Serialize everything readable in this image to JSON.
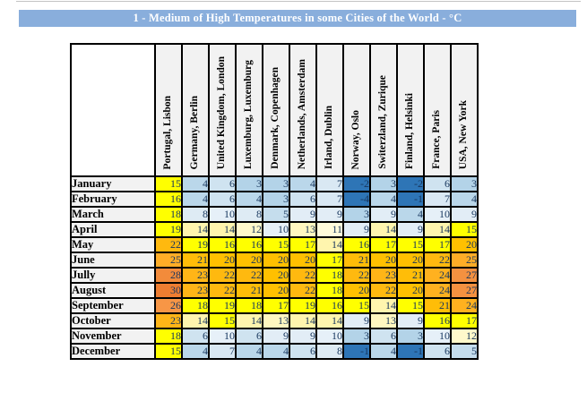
{
  "title_bar": {
    "label": "1 - Medium of High Temperatures in some Cities of the World - °C",
    "bg": "#89AEDC",
    "text_color": "#FFFFFF"
  },
  "colors": {
    "grid_border": "#000000",
    "header_cell_bg": "#F2F2F2",
    "month_cell_bg": "#F2F2F2",
    "number_text": "#17365D"
  },
  "chart_data": {
    "type": "heatmap",
    "title": "1 - Medium of High Temperatures in some Cities of the World - °C",
    "unit": "°C",
    "columns": [
      "Portugal, Lisbon",
      "Germany, Berlin",
      "United Kingdom, London",
      "Luxemburg, Luxemburg",
      "Denmark, Copenhagen",
      "Netherlands, Amsterdam",
      "Irland, Dublin",
      "Norway, Oslo",
      "Switerzland, Zurique",
      "Finland, Helsinki",
      "France, Paris",
      "USA, New York"
    ],
    "rows": [
      "January",
      "February",
      "March",
      "April",
      "May",
      "June",
      "Jully",
      "August",
      "September",
      "October",
      "November",
      "December"
    ],
    "values": [
      [
        15,
        4,
        6,
        3,
        3,
        4,
        7,
        -2,
        3,
        -2,
        6,
        3
      ],
      [
        16,
        4,
        6,
        4,
        3,
        6,
        7,
        -4,
        4,
        -1,
        7,
        4
      ],
      [
        18,
        8,
        10,
        8,
        5,
        9,
        9,
        3,
        9,
        4,
        10,
        9
      ],
      [
        19,
        14,
        14,
        12,
        10,
        13,
        11,
        9,
        14,
        9,
        14,
        15
      ],
      [
        22,
        19,
        16,
        16,
        15,
        17,
        14,
        16,
        17,
        15,
        17,
        20
      ],
      [
        25,
        21,
        20,
        20,
        20,
        20,
        17,
        21,
        20,
        20,
        22,
        25
      ],
      [
        28,
        23,
        22,
        22,
        20,
        22,
        18,
        22,
        23,
        21,
        24,
        27
      ],
      [
        30,
        23,
        22,
        21,
        20,
        22,
        18,
        20,
        22,
        20,
        24,
        27
      ],
      [
        26,
        18,
        19,
        18,
        17,
        19,
        16,
        15,
        14,
        15,
        21,
        24
      ],
      [
        23,
        14,
        15,
        14,
        13,
        14,
        14,
        9,
        13,
        9,
        16,
        17
      ],
      [
        18,
        6,
        10,
        6,
        9,
        9,
        10,
        3,
        6,
        3,
        10,
        12
      ],
      [
        15,
        4,
        7,
        4,
        4,
        6,
        8,
        -1,
        4,
        -1,
        6,
        5
      ]
    ],
    "palette": {
      "-4": "#2E75B6",
      "-2": "#2E75B6",
      "-1": "#2E75B6",
      "3": "#B3D3E8",
      "4": "#BAD7EA",
      "5": "#C5DDED",
      "6": "#CFE3F0",
      "7": "#D9E8F3",
      "8": "#DEEBF4",
      "9": "#E2EDF6",
      "10": "#E6F0F8",
      "11": "#FFFBDB",
      "12": "#FFF9CB",
      "13": "#FFF7C0",
      "14": "#FFF5AE",
      "15": "#FFFF00",
      "16": "#FFFF00",
      "17": "#FFFF00",
      "18": "#FFFF00",
      "19": "#FFFF00",
      "20": "#FFC000",
      "21": "#FFBD08",
      "22": "#FFB90F",
      "23": "#FFB517",
      "24": "#FFB11F",
      "25": "#FFAD27",
      "26": "#F79646",
      "27": "#F49140",
      "28": "#F28B3B",
      "30": "#EE7D31"
    },
    "legend_position": "none",
    "grid": true
  }
}
